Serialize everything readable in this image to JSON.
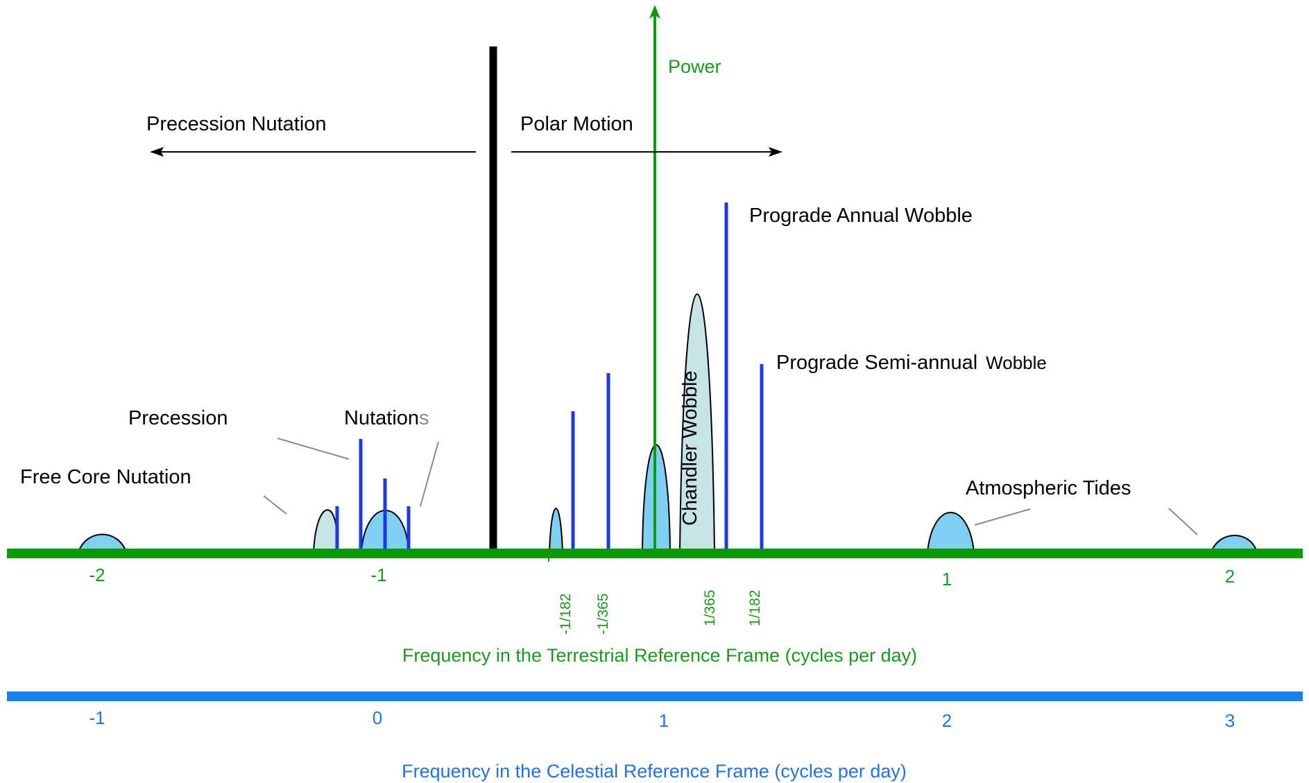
{
  "colors": {
    "terrestrial_axis": "#0a9a0a",
    "celestial_axis": "#1a80ee",
    "spectral_line": "#1a3ae8",
    "peak_fill": "#7ecff2",
    "peak_fill_light": "#c6e4e6",
    "divider": "#000000",
    "leader": "#8a8a8a"
  },
  "labels": {
    "power": "Power",
    "precession_nutation": "Precession Nutation",
    "polar_motion": "Polar Motion",
    "prograde_annual_wobble": "Prograde Annual Wobble",
    "prograde_semiannual_wobble_a": "Prograde Semi-annual",
    "prograde_semiannual_wobble_b": "Wobble",
    "chandler_wobble": "Chandler Wobble",
    "precession": "Precession",
    "nutations_a": "Nutation",
    "nutations_b": "s",
    "free_core_nutation": "Free Core Nutation",
    "atmospheric_tides": "Atmospheric Tides"
  },
  "terrestrial_axis": {
    "title": "Frequency in the Terrestrial Reference Frame (cycles per day)",
    "ticks": [
      "-2",
      "-1",
      "1",
      "2"
    ],
    "small_ticks": [
      "-1/182",
      "-1/365",
      "1/365",
      "1/182"
    ]
  },
  "celestial_axis": {
    "title": "Frequency in the Celestial Reference Frame (cycles per day)",
    "ticks": [
      "-1",
      "0",
      "1",
      "2",
      "3"
    ]
  },
  "icons": {
    "left_arrow": "arrow-left-icon",
    "right_arrow": "arrow-right-icon",
    "up_arrow": "arrow-up-icon"
  }
}
